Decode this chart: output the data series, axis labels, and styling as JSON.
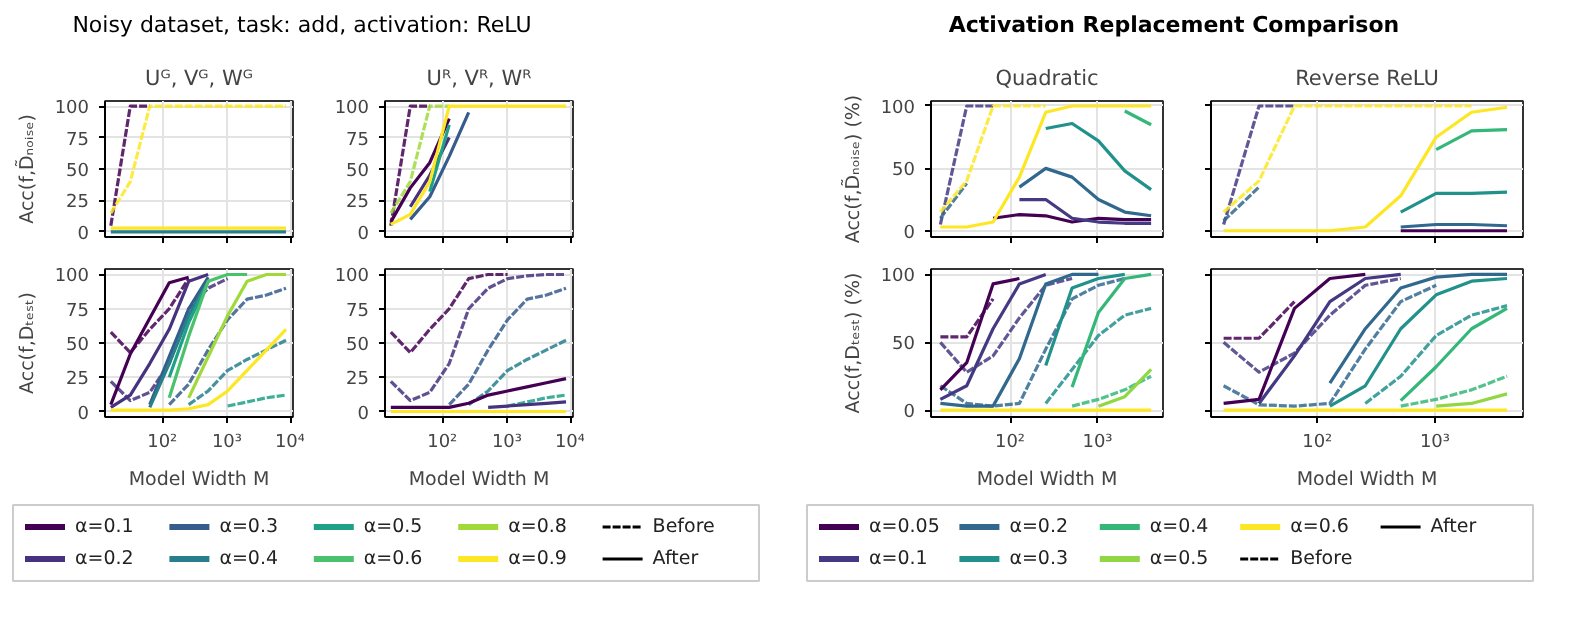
{
  "chart_data": [
    {
      "type": "line",
      "title": "Noisy dataset, task: add, activation: ReLU",
      "subtitle": "Uᴳ, Vᴳ, Wᴳ",
      "ylabel": "Acc(f,D̃ₙₒᵢₛₑ)",
      "log": "x",
      "grid": true,
      "tick_labels": "y",
      "x": [
        16,
        32,
        64,
        128,
        256,
        512,
        1024,
        2048,
        4096,
        8192
      ],
      "xlim": [
        13,
        10500
      ],
      "xticks": [
        {
          "value": 100,
          "label": null
        },
        {
          "value": 1000,
          "label": null
        },
        {
          "value": 10000,
          "label": null
        }
      ],
      "ylim": [
        -4,
        104
      ],
      "yticks": [
        0,
        25,
        50,
        75,
        100
      ],
      "series": [
        {
          "color": "#440154",
          "line_style": "dashed",
          "values": [
            5,
            100,
            100,
            null,
            null,
            null,
            null,
            null,
            null,
            null
          ]
        },
        {
          "color": "#fde725",
          "line_style": "dashed",
          "values": [
            15,
            40,
            100,
            100,
            100,
            100,
            100,
            100,
            100,
            100
          ]
        },
        {
          "color": "#277f8e",
          "line_style": "solid",
          "values": [
            0,
            0,
            0,
            0,
            0,
            0,
            0,
            0,
            0,
            0
          ]
        },
        {
          "color": "#fde725",
          "line_style": "solid",
          "values": [
            3,
            3,
            3,
            3,
            3,
            3,
            3,
            3,
            3,
            3
          ]
        }
      ]
    },
    {
      "type": "line",
      "title": "Uᴿ, Vᴿ, Wᴿ",
      "log": "x",
      "grid": true,
      "tick_labels": "y",
      "x": [
        16,
        32,
        64,
        128,
        256,
        512,
        1024,
        2048,
        4096,
        8192
      ],
      "xlim": [
        13,
        10500
      ],
      "xticks": [
        {
          "value": 100,
          "label": null
        },
        {
          "value": 1000,
          "label": null
        },
        {
          "value": 10000,
          "label": null
        }
      ],
      "ylim": [
        -4,
        104
      ],
      "yticks": [
        0,
        25,
        50,
        75,
        100
      ],
      "series": [
        {
          "color": "#440154",
          "line_style": "dashed",
          "values": [
            5,
            100,
            100,
            null,
            null,
            null,
            null,
            null,
            null,
            null
          ]
        },
        {
          "color": "#a0da39",
          "line_style": "dashed",
          "values": [
            15,
            40,
            100,
            100,
            null,
            null,
            null,
            null,
            null,
            null
          ]
        },
        {
          "color": "#440154",
          "line_style": "solid",
          "values": [
            8,
            35,
            55,
            90,
            null,
            null,
            null,
            null,
            null,
            null
          ]
        },
        {
          "color": "#46327e",
          "line_style": "solid",
          "values": [
            null,
            20,
            45,
            75,
            null,
            null,
            null,
            null,
            null,
            null
          ]
        },
        {
          "color": "#365c8d",
          "line_style": "solid",
          "values": [
            null,
            10,
            28,
            60,
            95,
            null,
            null,
            null,
            null,
            null
          ]
        },
        {
          "color": "#1fa187",
          "line_style": "solid",
          "values": [
            null,
            null,
            32,
            85,
            null,
            null,
            null,
            null,
            null,
            null
          ]
        },
        {
          "color": "#fde725",
          "line_style": "solid",
          "values": [
            6,
            14,
            40,
            100,
            100,
            100,
            100,
            100,
            100,
            100
          ]
        }
      ]
    },
    {
      "type": "line",
      "ylabel": "Acc(f,Dₜₑₛₜ)",
      "xlabel": "Model Width M",
      "log": "x",
      "grid": true,
      "legend": "bottom",
      "x": [
        16,
        32,
        64,
        128,
        256,
        512,
        1024,
        2048,
        4096,
        8192
      ],
      "xlim": [
        13,
        10500
      ],
      "xticks": [
        {
          "value": 100,
          "label": "10²"
        },
        {
          "value": 1000,
          "label": "10³"
        },
        {
          "value": 10000,
          "label": "10⁴"
        }
      ],
      "ylim": [
        -4,
        104
      ],
      "yticks": [
        0,
        25,
        50,
        75,
        100
      ],
      "series": [
        {
          "color": "#440154",
          "line_style": "dashed",
          "values": [
            58,
            43,
            60,
            75,
            97,
            null,
            null,
            null,
            null,
            null
          ]
        },
        {
          "color": "#46327e",
          "line_style": "dashed",
          "values": [
            22,
            8,
            14,
            35,
            75,
            90,
            97,
            null,
            null,
            null
          ]
        },
        {
          "color": "#365c8d",
          "line_style": "dashed",
          "values": [
            null,
            null,
            null,
            5,
            20,
            45,
            67,
            82,
            85,
            90
          ]
        },
        {
          "color": "#277f8e",
          "line_style": "dashed",
          "values": [
            null,
            null,
            null,
            null,
            5,
            15,
            30,
            38,
            45,
            52
          ]
        },
        {
          "color": "#1fa187",
          "line_style": "dashed",
          "values": [
            null,
            null,
            null,
            null,
            null,
            null,
            4,
            7,
            10,
            12
          ]
        },
        {
          "name": "α=0.1",
          "color": "#440154",
          "line_style": "solid",
          "values": [
            5,
            42,
            68,
            94,
            98,
            null,
            null,
            null,
            null,
            null
          ]
        },
        {
          "name": "α=0.2",
          "color": "#46327e",
          "line_style": "solid",
          "values": [
            3,
            12,
            35,
            60,
            95,
            100,
            null,
            null,
            null,
            null
          ]
        },
        {
          "name": "α=0.3",
          "color": "#365c8d",
          "line_style": "solid",
          "values": [
            null,
            null,
            5,
            40,
            75,
            98,
            null,
            null,
            null,
            null
          ]
        },
        {
          "name": "α=0.4",
          "color": "#277f8e",
          "line_style": "solid",
          "values": [
            null,
            null,
            3,
            35,
            70,
            95,
            null,
            null,
            null,
            null
          ]
        },
        {
          "name": "α=0.5",
          "color": "#1fa187",
          "line_style": "solid",
          "values": [
            null,
            null,
            null,
            25,
            65,
            95,
            null,
            null,
            null,
            null
          ]
        },
        {
          "name": "α=0.6",
          "color": "#4ac16d",
          "line_style": "solid",
          "values": [
            null,
            null,
            null,
            10,
            55,
            95,
            100,
            100,
            null,
            null
          ]
        },
        {
          "name": "α=0.8",
          "color": "#a0da39",
          "line_style": "solid",
          "values": [
            null,
            null,
            null,
            null,
            10,
            40,
            70,
            95,
            100,
            100
          ]
        },
        {
          "name": "α=0.9",
          "color": "#fde725",
          "line_style": "solid",
          "values": [
            1,
            1,
            1,
            1,
            2,
            5,
            15,
            30,
            45,
            60
          ]
        },
        {
          "name": "Before",
          "color": "#000000",
          "line_style": "dashed",
          "values": [
            null,
            null,
            null,
            null,
            null,
            null,
            null,
            null,
            null,
            null
          ]
        },
        {
          "name": "After",
          "color": "#000000",
          "line_style": "solid",
          "values": [
            null,
            null,
            null,
            null,
            null,
            null,
            null,
            null,
            null,
            null
          ]
        }
      ]
    },
    {
      "type": "line",
      "xlabel": "Model Width M",
      "log": "x",
      "grid": true,
      "x": [
        16,
        32,
        64,
        128,
        256,
        512,
        1024,
        2048,
        4096,
        8192
      ],
      "xlim": [
        13,
        10500
      ],
      "xticks": [
        {
          "value": 100,
          "label": "10²"
        },
        {
          "value": 1000,
          "label": "10³"
        },
        {
          "value": 10000,
          "label": "10⁴"
        }
      ],
      "ylim": [
        -4,
        104
      ],
      "yticks": [
        0,
        25,
        50,
        75,
        100
      ],
      "series": [
        {
          "color": "#440154",
          "line_style": "dashed",
          "values": [
            58,
            43,
            60,
            75,
            97,
            100,
            100,
            null,
            null,
            null
          ]
        },
        {
          "color": "#46327e",
          "line_style": "dashed",
          "values": [
            22,
            8,
            14,
            35,
            75,
            90,
            97,
            99,
            100,
            100
          ]
        },
        {
          "color": "#365c8d",
          "line_style": "dashed",
          "values": [
            null,
            null,
            null,
            5,
            20,
            45,
            67,
            82,
            85,
            90
          ]
        },
        {
          "color": "#277f8e",
          "line_style": "dashed",
          "values": [
            null,
            null,
            null,
            null,
            5,
            15,
            30,
            38,
            45,
            52
          ]
        },
        {
          "color": "#1fa187",
          "line_style": "dashed",
          "values": [
            null,
            null,
            null,
            null,
            null,
            null,
            4,
            7,
            10,
            12
          ]
        },
        {
          "color": "#440154",
          "line_style": "solid",
          "values": [
            3,
            3,
            3,
            3,
            6,
            12,
            15,
            18,
            21,
            24
          ]
        },
        {
          "color": "#46327e",
          "line_style": "solid",
          "values": [
            null,
            null,
            null,
            null,
            null,
            3,
            4,
            5,
            6,
            7
          ]
        },
        {
          "color": "#fde725",
          "line_style": "solid",
          "values": [
            0,
            0,
            0,
            0,
            0,
            0,
            0,
            0,
            0,
            0
          ]
        }
      ]
    },
    {
      "type": "line",
      "title": "Activation Replacement Comparison",
      "subtitle": "Quadratic",
      "ylabel": "Acc(f,D̃ₙₒᵢₛₑ) (%)",
      "log": "x",
      "grid": true,
      "tick_labels": "y",
      "x": [
        16,
        32,
        64,
        128,
        256,
        512,
        1024,
        2048,
        4096
      ],
      "xlim": [
        12.5,
        5600
      ],
      "xticks": [
        {
          "value": 100,
          "label": null
        },
        {
          "value": 1000,
          "label": null
        }
      ],
      "ylim": [
        -5,
        104
      ],
      "yticks": [
        0,
        50,
        100
      ],
      "series": [
        {
          "color": "#443983",
          "line_style": "dashed",
          "values": [
            5,
            100,
            100,
            null,
            null,
            null,
            null,
            null,
            null
          ]
        },
        {
          "color": "#31688e",
          "line_style": "dashed",
          "values": [
            10,
            38,
            null,
            null,
            null,
            null,
            null,
            null,
            null
          ]
        },
        {
          "color": "#fde725",
          "line_style": "dashed",
          "values": [
            15,
            40,
            100,
            100,
            100,
            null,
            null,
            null,
            null
          ]
        },
        {
          "color": "#440154",
          "line_style": "solid",
          "values": [
            null,
            null,
            10,
            13,
            12,
            7,
            10,
            9,
            9
          ]
        },
        {
          "color": "#443983",
          "line_style": "solid",
          "values": [
            null,
            null,
            null,
            25,
            25,
            10,
            7,
            6,
            6
          ]
        },
        {
          "color": "#31688e",
          "line_style": "solid",
          "values": [
            null,
            null,
            null,
            35,
            50,
            43,
            25,
            15,
            12
          ]
        },
        {
          "color": "#21918c",
          "line_style": "solid",
          "values": [
            null,
            null,
            null,
            null,
            82,
            86,
            72,
            48,
            33
          ]
        },
        {
          "color": "#35b779",
          "line_style": "solid",
          "values": [
            null,
            null,
            null,
            null,
            null,
            null,
            null,
            96,
            85
          ]
        },
        {
          "color": "#fde725",
          "line_style": "solid",
          "values": [
            3,
            3,
            7,
            43,
            95,
            100,
            100,
            100,
            100
          ]
        }
      ]
    },
    {
      "type": "line",
      "title": "Reverse ReLU",
      "log": "x",
      "grid": true,
      "tick_labels": false,
      "x": [
        16,
        32,
        64,
        128,
        256,
        512,
        1024,
        2048,
        4096
      ],
      "xlim": [
        12.5,
        5600
      ],
      "xticks": [
        {
          "value": 100,
          "label": null
        },
        {
          "value": 1000,
          "label": null
        }
      ],
      "ylim": [
        -5,
        104
      ],
      "yticks": [
        0,
        50,
        100
      ],
      "series": [
        {
          "color": "#443983",
          "line_style": "dashed",
          "values": [
            5,
            100,
            100,
            null,
            null,
            null,
            null,
            null,
            null
          ]
        },
        {
          "color": "#31688e",
          "line_style": "dashed",
          "values": [
            8,
            35,
            null,
            null,
            null,
            null,
            null,
            null,
            null
          ]
        },
        {
          "color": "#fde725",
          "line_style": "dashed",
          "values": [
            15,
            40,
            100,
            100,
            100,
            100,
            100,
            100,
            null
          ]
        },
        {
          "color": "#440154",
          "line_style": "solid",
          "values": [
            null,
            null,
            null,
            null,
            null,
            0,
            0,
            0,
            0
          ]
        },
        {
          "color": "#31688e",
          "line_style": "solid",
          "values": [
            null,
            null,
            null,
            null,
            null,
            3,
            5,
            5,
            4
          ]
        },
        {
          "color": "#21918c",
          "line_style": "solid",
          "values": [
            null,
            null,
            null,
            null,
            null,
            15,
            30,
            30,
            31
          ]
        },
        {
          "color": "#35b779",
          "line_style": "solid",
          "values": [
            null,
            null,
            null,
            null,
            null,
            null,
            65,
            80,
            81
          ]
        },
        {
          "color": "#fde725",
          "line_style": "solid",
          "values": [
            0,
            0,
            0,
            0,
            3,
            28,
            75,
            95,
            99
          ]
        }
      ]
    },
    {
      "type": "line",
      "ylabel": "Acc(f,Dₜₑₛₜ) (%)",
      "xlabel": "Model Width M",
      "log": "x",
      "grid": true,
      "legend": "bottom",
      "x": [
        16,
        32,
        64,
        128,
        256,
        512,
        1024,
        2048,
        4096
      ],
      "xlim": [
        12.5,
        5600
      ],
      "xticks": [
        {
          "value": 100,
          "label": "10²"
        },
        {
          "value": 1000,
          "label": "10³"
        }
      ],
      "ylim": [
        -5,
        104
      ],
      "yticks": [
        0,
        50,
        100
      ],
      "series": [
        {
          "color": "#440154",
          "line_style": "dashed",
          "values": [
            54,
            54,
            82,
            null,
            null,
            null,
            null,
            null,
            null
          ]
        },
        {
          "color": "#443983",
          "line_style": "dashed",
          "values": [
            50,
            28,
            40,
            68,
            92,
            97,
            null,
            null,
            null
          ]
        },
        {
          "color": "#31688e",
          "line_style": "dashed",
          "values": [
            18,
            5,
            3,
            5,
            45,
            82,
            92,
            97,
            null
          ]
        },
        {
          "color": "#21918c",
          "line_style": "dashed",
          "values": [
            null,
            null,
            null,
            null,
            5,
            30,
            55,
            70,
            75
          ]
        },
        {
          "color": "#35b779",
          "line_style": "dashed",
          "values": [
            null,
            null,
            null,
            null,
            null,
            3,
            8,
            15,
            25
          ]
        },
        {
          "name": "α=0.05",
          "color": "#440154",
          "line_style": "solid",
          "values": [
            15,
            35,
            93,
            97,
            null,
            null,
            null,
            null,
            null
          ]
        },
        {
          "name": "α=0.1",
          "color": "#443983",
          "line_style": "solid",
          "values": [
            8,
            18,
            60,
            93,
            100,
            null,
            null,
            null,
            null
          ]
        },
        {
          "name": "α=0.2",
          "color": "#31688e",
          "line_style": "solid",
          "values": [
            5,
            3,
            3,
            38,
            93,
            100,
            100,
            null,
            null
          ]
        },
        {
          "name": "α=0.3",
          "color": "#21918c",
          "line_style": "solid",
          "values": [
            null,
            null,
            null,
            null,
            33,
            90,
            97,
            100,
            null
          ]
        },
        {
          "name": "α=0.4",
          "color": "#35b779",
          "line_style": "solid",
          "values": [
            null,
            null,
            null,
            null,
            null,
            17,
            72,
            97,
            100
          ]
        },
        {
          "name": "α=0.5",
          "color": "#90d743",
          "line_style": "solid",
          "values": [
            null,
            null,
            null,
            null,
            null,
            null,
            3,
            10,
            30
          ]
        },
        {
          "name": "α=0.6",
          "color": "#fde725",
          "line_style": "solid",
          "values": [
            0,
            0,
            0,
            0,
            0,
            0,
            0,
            0,
            0
          ]
        },
        {
          "name": "Before",
          "color": "#000000",
          "line_style": "dashed",
          "values": [
            null,
            null,
            null,
            null,
            null,
            null,
            null,
            null,
            null
          ]
        },
        {
          "name": "After",
          "color": "#000000",
          "line_style": "solid",
          "values": [
            null,
            null,
            null,
            null,
            null,
            null,
            null,
            null,
            null
          ]
        }
      ]
    },
    {
      "type": "line",
      "xlabel": "Model Width M",
      "log": "x",
      "grid": true,
      "tick_labels": "x",
      "x": [
        16,
        32,
        64,
        128,
        256,
        512,
        1024,
        2048,
        4096
      ],
      "xlim": [
        12.5,
        5600
      ],
      "xticks": [
        {
          "value": 100,
          "label": "10²"
        },
        {
          "value": 1000,
          "label": "10³"
        }
      ],
      "ylim": [
        -5,
        104
      ],
      "yticks": [
        0,
        50,
        100
      ],
      "series": [
        {
          "color": "#440154",
          "line_style": "dashed",
          "values": [
            53,
            53,
            80,
            null,
            null,
            null,
            null,
            null,
            null
          ]
        },
        {
          "color": "#443983",
          "line_style": "dashed",
          "values": [
            50,
            28,
            42,
            70,
            92,
            97,
            null,
            null,
            null
          ]
        },
        {
          "color": "#31688e",
          "line_style": "dashed",
          "values": [
            18,
            4,
            3,
            5,
            45,
            80,
            92,
            null,
            null
          ]
        },
        {
          "color": "#21918c",
          "line_style": "dashed",
          "values": [
            null,
            null,
            null,
            null,
            5,
            25,
            55,
            70,
            77
          ]
        },
        {
          "color": "#35b779",
          "line_style": "dashed",
          "values": [
            null,
            null,
            null,
            null,
            null,
            3,
            8,
            15,
            25
          ]
        },
        {
          "color": "#440154",
          "line_style": "solid",
          "values": [
            5,
            8,
            75,
            97,
            100,
            null,
            null,
            null,
            null
          ]
        },
        {
          "color": "#443983",
          "line_style": "solid",
          "values": [
            null,
            5,
            40,
            80,
            97,
            100,
            null,
            null,
            null
          ]
        },
        {
          "color": "#31688e",
          "line_style": "solid",
          "values": [
            null,
            null,
            null,
            20,
            60,
            90,
            98,
            100,
            100
          ]
        },
        {
          "color": "#21918c",
          "line_style": "solid",
          "values": [
            null,
            null,
            null,
            3,
            18,
            60,
            85,
            95,
            97
          ]
        },
        {
          "color": "#35b779",
          "line_style": "solid",
          "values": [
            null,
            null,
            null,
            null,
            null,
            7,
            32,
            60,
            75
          ]
        },
        {
          "color": "#90d743",
          "line_style": "solid",
          "values": [
            null,
            null,
            null,
            null,
            null,
            null,
            3,
            5,
            12
          ]
        },
        {
          "color": "#fde725",
          "line_style": "solid",
          "values": [
            0,
            0,
            0,
            0,
            0,
            0,
            0,
            0,
            0
          ]
        }
      ]
    }
  ]
}
